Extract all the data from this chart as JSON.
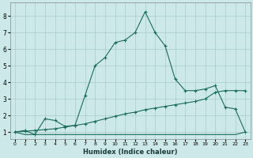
{
  "xlabel": "Humidex (Indice chaleur)",
  "bg_color": "#cce8e8",
  "grid_color": "#aacccc",
  "line_color": "#1a6b5a",
  "xlim": [
    -0.5,
    23.5
  ],
  "ylim": [
    0.6,
    8.8
  ],
  "yticks": [
    1,
    2,
    3,
    4,
    5,
    6,
    7,
    8
  ],
  "xticks": [
    0,
    1,
    2,
    3,
    4,
    5,
    6,
    7,
    8,
    9,
    10,
    11,
    12,
    13,
    14,
    15,
    16,
    17,
    18,
    19,
    20,
    21,
    22,
    23
  ],
  "line1_x": [
    0,
    1,
    2,
    3,
    4,
    5,
    6,
    7,
    8,
    9,
    10,
    11,
    12,
    13,
    14,
    15,
    16,
    17,
    18,
    19,
    20,
    21,
    22,
    23
  ],
  "line1_y": [
    1.0,
    1.1,
    0.85,
    1.8,
    1.7,
    1.35,
    1.4,
    3.2,
    5.0,
    5.5,
    6.4,
    6.55,
    7.0,
    8.25,
    7.0,
    6.2,
    4.2,
    3.5,
    3.5,
    3.6,
    3.8,
    2.5,
    2.4,
    1.0
  ],
  "line2_x": [
    0,
    1,
    2,
    3,
    4,
    5,
    6,
    7,
    8,
    9,
    10,
    11,
    12,
    13,
    14,
    15,
    16,
    17,
    18,
    19,
    20,
    21,
    22,
    23
  ],
  "line2_y": [
    1.0,
    0.85,
    0.85,
    0.85,
    0.85,
    0.85,
    0.85,
    0.85,
    0.85,
    0.85,
    0.85,
    0.85,
    0.85,
    0.85,
    0.85,
    0.85,
    0.85,
    0.85,
    0.85,
    0.85,
    0.85,
    0.85,
    0.85,
    1.0
  ],
  "line3_x": [
    0,
    1,
    2,
    3,
    4,
    5,
    6,
    7,
    8,
    9,
    10,
    11,
    12,
    13,
    14,
    15,
    16,
    17,
    18,
    19,
    20,
    21,
    22,
    23
  ],
  "line3_y": [
    1.0,
    1.05,
    1.1,
    1.15,
    1.2,
    1.3,
    1.4,
    1.5,
    1.65,
    1.8,
    1.95,
    2.1,
    2.2,
    2.35,
    2.45,
    2.55,
    2.65,
    2.75,
    2.85,
    3.0,
    3.4,
    3.5,
    3.5,
    3.5
  ]
}
